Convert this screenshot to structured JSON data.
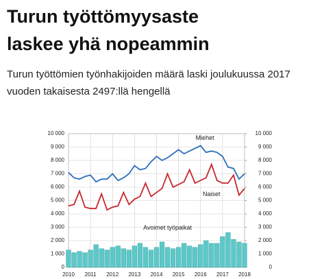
{
  "header": {
    "title": "Turun työttömyysaste laskee yhä nopeammin",
    "subtitle": "Turun työttömien työnhakijoiden määrä laski joulukuussa 2017 vuoden takaisesta 2497:llä hengellä"
  },
  "chart_data": {
    "type": "line",
    "x": [
      2010,
      2010.25,
      2010.5,
      2010.75,
      2011,
      2011.25,
      2011.5,
      2011.75,
      2012,
      2012.25,
      2012.5,
      2012.75,
      2013,
      2013.25,
      2013.5,
      2013.75,
      2014,
      2014.25,
      2014.5,
      2014.75,
      2015,
      2015.25,
      2015.5,
      2015.75,
      2016,
      2016.25,
      2016.5,
      2016.75,
      2017,
      2017.25,
      2017.5,
      2017.75,
      2018
    ],
    "series": [
      {
        "name": "Miehet",
        "type": "line",
        "color": "#2a6ebb",
        "values": [
          7100,
          6700,
          6600,
          6800,
          6900,
          6400,
          6600,
          6600,
          7000,
          6500,
          6700,
          7000,
          7600,
          7300,
          7400,
          7900,
          8300,
          8000,
          8200,
          8500,
          8800,
          8500,
          8700,
          8900,
          9100,
          8600,
          8700,
          8600,
          8300,
          7500,
          7400,
          6600,
          7000
        ]
      },
      {
        "name": "Naiset",
        "type": "line",
        "color": "#c8262c",
        "values": [
          4600,
          4700,
          5700,
          4500,
          4400,
          4400,
          5500,
          4300,
          4500,
          4600,
          5600,
          4700,
          5100,
          5300,
          6300,
          5300,
          5600,
          5900,
          7000,
          6000,
          6200,
          6400,
          7300,
          6300,
          6500,
          6700,
          7700,
          6500,
          6300,
          6300,
          6900,
          5400,
          5900
        ]
      },
      {
        "name": "Avoimet työpaikat",
        "type": "bar",
        "color": "#5ec8c8",
        "values": [
          1300,
          1100,
          1200,
          1100,
          1300,
          1700,
          1400,
          1300,
          1500,
          1600,
          1400,
          1300,
          1600,
          1800,
          1500,
          1300,
          1500,
          1900,
          1500,
          1400,
          1500,
          1800,
          1600,
          1500,
          1700,
          2000,
          1800,
          1800,
          2300,
          2600,
          2100,
          1900,
          1800
        ]
      }
    ],
    "xlim": [
      2010,
      2018
    ],
    "xticks": [
      2010,
      2011,
      2012,
      2013,
      2014,
      2015,
      2016,
      2017,
      2018
    ],
    "ylim": [
      0,
      10000
    ],
    "yticks": [
      0,
      {
        "value": 1000,
        "label": "1 000"
      },
      {
        "value": 2000,
        "label": "2 000"
      },
      {
        "value": 3000,
        "label": "3 000"
      },
      {
        "value": 4000,
        "label": "4 000"
      },
      {
        "value": 5000,
        "label": "5 000"
      },
      {
        "value": 6000,
        "label": "6 000"
      },
      {
        "value": 7000,
        "label": "7 000"
      },
      {
        "value": 8000,
        "label": "8 000"
      },
      {
        "value": 9000,
        "label": "9 000"
      },
      {
        "value": 10000,
        "label": "10 000"
      }
    ],
    "y2lim": [
      0,
      10000
    ],
    "y2ticks": [
      0,
      {
        "value": 1000,
        "label": "1 000"
      },
      {
        "value": 2000,
        "label": "2 000"
      },
      {
        "value": 3000,
        "label": "3 000"
      },
      {
        "value": 4000,
        "label": "4 000"
      },
      {
        "value": 5000,
        "label": "5 000"
      },
      {
        "value": 6000,
        "label": "6 000"
      },
      {
        "value": 7000,
        "label": "7 000"
      },
      {
        "value": 8000,
        "label": "8 000"
      },
      {
        "value": 9000,
        "label": "9 000"
      },
      {
        "value": 10000,
        "label": "10 000"
      }
    ],
    "grid": true
  }
}
